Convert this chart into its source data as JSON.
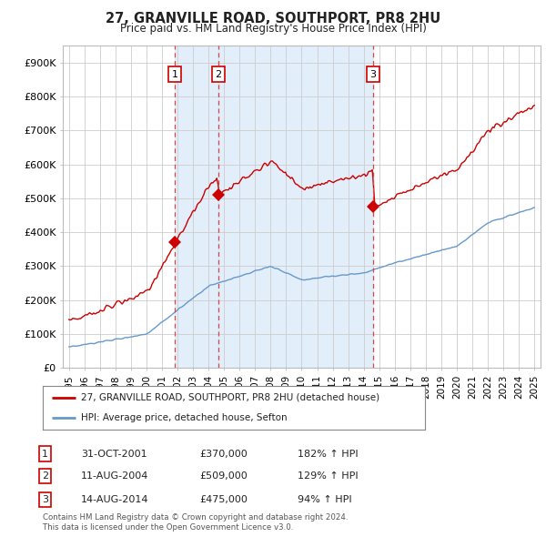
{
  "title1": "27, GRANVILLE ROAD, SOUTHPORT, PR8 2HU",
  "title2": "Price paid vs. HM Land Registry's House Price Index (HPI)",
  "ylabel_ticks": [
    "£0",
    "£100K",
    "£200K",
    "£300K",
    "£400K",
    "£500K",
    "£600K",
    "£700K",
    "£800K",
    "£900K"
  ],
  "ytick_vals": [
    0,
    100000,
    200000,
    300000,
    400000,
    500000,
    600000,
    700000,
    800000,
    900000
  ],
  "ylim": [
    0,
    950000
  ],
  "xlim_start": 1994.6,
  "xlim_end": 2025.4,
  "red_line_color": "#cc0000",
  "blue_line_color": "#6699cc",
  "blue_fill_color": "#d6e8f7",
  "vertical_line_color": "#dd4444",
  "purchase_dates": [
    2001.83,
    2004.61,
    2014.61
  ],
  "purchase_prices": [
    370000,
    509000,
    475000
  ],
  "purchase_labels": [
    "1",
    "2",
    "3"
  ],
  "legend_label_red": "27, GRANVILLE ROAD, SOUTHPORT, PR8 2HU (detached house)",
  "legend_label_blue": "HPI: Average price, detached house, Sefton",
  "table_entries": [
    {
      "num": "1",
      "date": "31-OCT-2001",
      "price": "£370,000",
      "hpi": "182% ↑ HPI"
    },
    {
      "num": "2",
      "date": "11-AUG-2004",
      "price": "£509,000",
      "hpi": "129% ↑ HPI"
    },
    {
      "num": "3",
      "date": "14-AUG-2014",
      "price": "£475,000",
      "hpi": "94% ↑ HPI"
    }
  ],
  "footnote1": "Contains HM Land Registry data © Crown copyright and database right 2024.",
  "footnote2": "This data is licensed under the Open Government Licence v3.0.",
  "background_color": "#ffffff",
  "grid_color": "#cccccc"
}
